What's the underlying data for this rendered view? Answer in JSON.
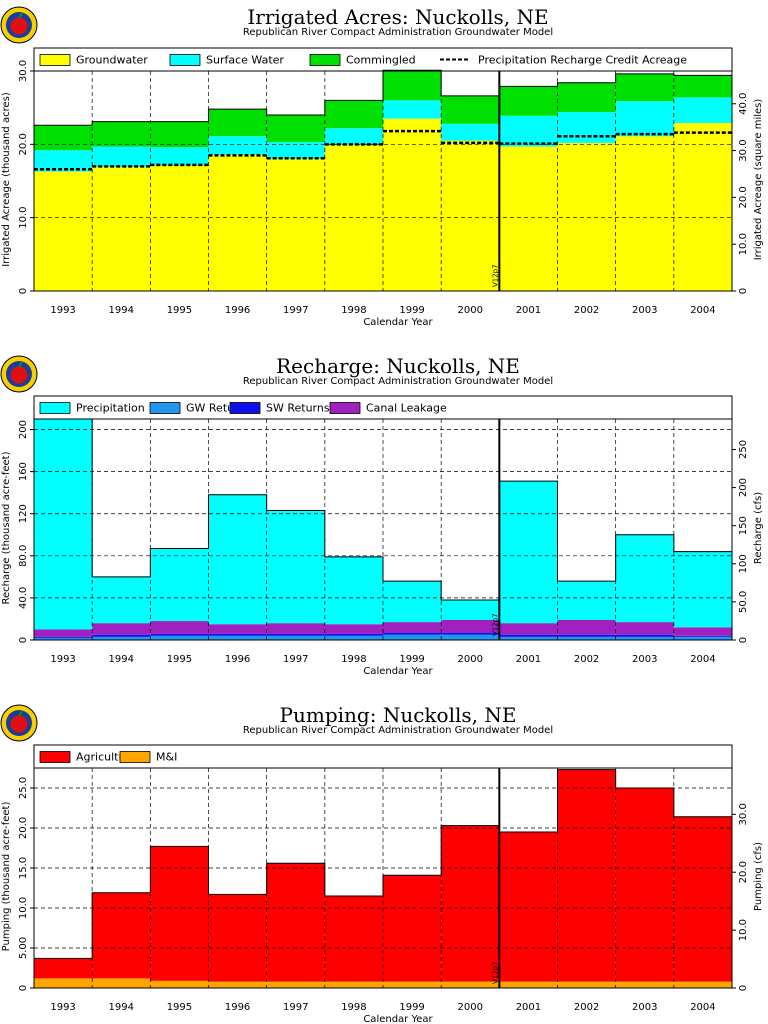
{
  "chart_data": [
    {
      "type": "area",
      "title": "Irrigated Acres: Nuckolls, NE",
      "subtitle": "Republican River Compact Administration Groundwater Model",
      "xlabel": "Calendar Year",
      "ylabel": "Irrigated Acreage (thousand acres)",
      "y2label": "Irrigated Acreage (square miles)",
      "categories": [
        "1993",
        "1994",
        "1995",
        "1996",
        "1997",
        "1998",
        "1999",
        "2000",
        "2001",
        "2002",
        "2003",
        "2004"
      ],
      "ylim": [
        0,
        30
      ],
      "yticks": [
        "0",
        "10.0",
        "20.0",
        "30.0"
      ],
      "y2lim": [
        0,
        47
      ],
      "y2ticks": [
        "0",
        "10.0",
        "20.0",
        "30.0",
        "40.0"
      ],
      "legend_placement": "top",
      "vertical_marker": {
        "after": "2000",
        "label": "V12p7"
      },
      "series": [
        {
          "name": "Groundwater",
          "color": "#ffff00",
          "values": [
            16.3,
            16.9,
            17.1,
            18.6,
            18.0,
            19.9,
            23.5,
            20.5,
            19.7,
            20.2,
            21.1,
            22.9
          ]
        },
        {
          "name": "Surface Water",
          "color": "#00ffff",
          "values": [
            2.9,
            2.8,
            2.5,
            2.5,
            2.3,
            2.3,
            2.5,
            2.3,
            4.2,
            4.2,
            4.8,
            3.5
          ]
        },
        {
          "name": "Commingled",
          "color": "#00e000",
          "values": [
            3.4,
            3.4,
            3.5,
            3.7,
            3.7,
            3.8,
            4.1,
            3.8,
            4.0,
            4.0,
            3.7,
            3.0
          ]
        }
      ],
      "line_series": [
        {
          "name": "Precipitation Recharge Credit Acreage",
          "style": "dashed",
          "values": [
            16.6,
            17.0,
            17.2,
            18.5,
            18.1,
            20.0,
            21.8,
            20.2,
            20.1,
            21.1,
            21.4,
            21.6
          ]
        }
      ]
    },
    {
      "type": "area",
      "title": "Recharge: Nuckolls, NE",
      "subtitle": "Republican River Compact Administration Groundwater Model",
      "xlabel": "Calendar Year",
      "ylabel": "Recharge (thousand acre-feet)",
      "y2label": "Recharge (cfs)",
      "categories": [
        "1993",
        "1994",
        "1995",
        "1996",
        "1997",
        "1998",
        "1999",
        "2000",
        "2001",
        "2002",
        "2003",
        "2004"
      ],
      "ylim": [
        0,
        210
      ],
      "yticks": [
        "0",
        "40.0",
        "80.0",
        "120",
        "160",
        "200"
      ],
      "y2lim": [
        0,
        290
      ],
      "y2ticks": [
        "0",
        "50.0",
        "100",
        "150",
        "200",
        "250"
      ],
      "legend_placement": "top",
      "vertical_marker": {
        "after": "2000",
        "label": "V12p7"
      },
      "series": [
        {
          "name": "GW Returns",
          "color": "#2196f3",
          "values": [
            2,
            3,
            4,
            4,
            4,
            4,
            5,
            5,
            3,
            3,
            3,
            3
          ]
        },
        {
          "name": "SW Returns",
          "color": "#1010ee",
          "values": [
            1,
            2,
            2,
            2,
            2,
            2,
            2,
            2,
            2,
            2,
            2,
            1
          ]
        },
        {
          "name": "Canal Leakage",
          "color": "#a020c0",
          "values": [
            7,
            11,
            12,
            9,
            10,
            9,
            10,
            12,
            11,
            14,
            12,
            8
          ]
        },
        {
          "name": "Precipitation",
          "color": "#00ffff",
          "values": [
            200,
            44,
            69,
            123,
            107,
            64,
            39,
            19,
            135,
            37,
            83,
            72
          ]
        }
      ]
    },
    {
      "type": "area",
      "title": "Pumping: Nuckolls, NE",
      "subtitle": "Republican River Compact Administration Groundwater Model",
      "xlabel": "Calendar Year",
      "ylabel": "Pumping (thousand acre-feet)",
      "y2label": "Pumping (cfs)",
      "categories": [
        "1993",
        "1994",
        "1995",
        "1996",
        "1997",
        "1998",
        "1999",
        "2000",
        "2001",
        "2002",
        "2003",
        "2004"
      ],
      "ylim": [
        0,
        27.5
      ],
      "yticks": [
        "0",
        "5.00",
        "10.0",
        "15.0",
        "20.0",
        "25.0"
      ],
      "y2lim": [
        0,
        38
      ],
      "y2ticks": [
        "0",
        "10.0",
        "20.0",
        "30.0"
      ],
      "legend_placement": "top",
      "vertical_marker": {
        "after": "2000",
        "label": "V12p7"
      },
      "series": [
        {
          "name": "M&I",
          "color": "#ffa500",
          "values": [
            1.2,
            1.2,
            0.9,
            0.8,
            0.8,
            0.8,
            0.8,
            0.8,
            0.8,
            0.8,
            0.8,
            0.8
          ]
        },
        {
          "name": "Agricultural",
          "color": "#ff0000",
          "values": [
            2.5,
            10.7,
            16.8,
            10.9,
            14.8,
            10.7,
            13.3,
            19.5,
            18.7,
            26.5,
            24.2,
            20.6
          ]
        }
      ],
      "legend_order": [
        "Agricultural",
        "M&I"
      ]
    }
  ]
}
